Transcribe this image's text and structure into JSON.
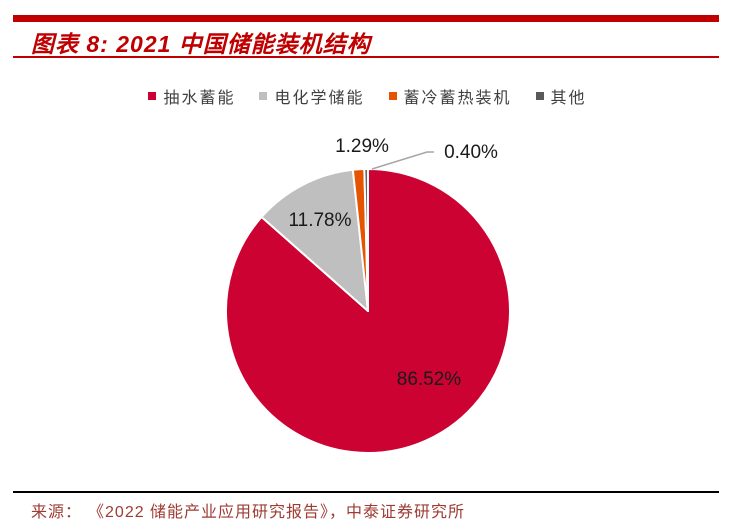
{
  "header": {
    "title": "图表 8: 2021 中国储能装机结构"
  },
  "source": {
    "prefix": "来源：",
    "text": "《2022 储能产业应用研究报告》，中泰证券研究所"
  },
  "chart_data": {
    "type": "pie",
    "title": "2021 中国储能装机结构",
    "categories": [
      "抽水蓄能",
      "电化学储能",
      "蓄冷蓄热装机",
      "其他"
    ],
    "values": [
      86.52,
      11.78,
      1.29,
      0.4
    ],
    "labels": [
      "86.52%",
      "11.78%",
      "1.29%",
      "0.40%"
    ],
    "colors": [
      "#CC0233",
      "#BFBFBF",
      "#E55400",
      "#595959"
    ],
    "legend_position": "top",
    "start_angle_deg": -90,
    "direction": "clockwise",
    "accent_color": "#C00000",
    "label_color": "#1a1a1a",
    "leader_line_color": "#A6A6A6"
  }
}
